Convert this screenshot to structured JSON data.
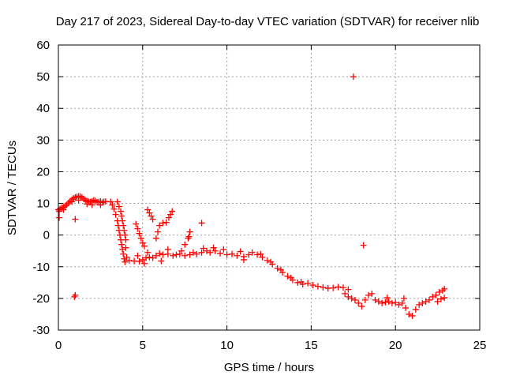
{
  "colors": {
    "series": "#ff0000",
    "grid": "#a0a0a0",
    "axis": "#000000",
    "background": "#ffffff"
  },
  "chart_data": {
    "type": "scatter",
    "title": "Day 217 of 2023, Sidereal Day-to-day VTEC variation (SDTVAR) for receiver nlib",
    "xlabel": "GPS time / hours",
    "ylabel": "SDTVAR / TECUs",
    "xlim": [
      0,
      25
    ],
    "ylim": [
      -30,
      60
    ],
    "xticks": [
      0,
      5,
      10,
      15,
      20,
      25
    ],
    "yticks": [
      -30,
      -20,
      -10,
      0,
      10,
      20,
      30,
      40,
      50,
      60
    ],
    "grid": true,
    "marker": "plus",
    "series": [
      {
        "name": "SDTVAR",
        "points": [
          [
            0.0,
            8.0
          ],
          [
            0.1,
            8.3
          ],
          [
            0.2,
            8.6
          ],
          [
            0.3,
            8.8
          ],
          [
            0.4,
            9.2
          ],
          [
            0.5,
            9.6
          ],
          [
            0.6,
            10.1
          ],
          [
            0.7,
            10.7
          ],
          [
            0.8,
            11.2
          ],
          [
            0.9,
            11.6
          ],
          [
            1.0,
            11.9
          ],
          [
            1.1,
            12.1
          ],
          [
            1.2,
            12.3
          ],
          [
            1.3,
            12.2
          ],
          [
            1.4,
            11.9
          ],
          [
            1.5,
            11.4
          ],
          [
            1.6,
            11.0
          ],
          [
            1.7,
            10.7
          ],
          [
            1.8,
            10.5
          ],
          [
            1.9,
            10.4
          ],
          [
            2.0,
            10.6
          ],
          [
            2.1,
            11.0
          ],
          [
            2.2,
            10.8
          ],
          [
            2.3,
            10.4
          ],
          [
            2.4,
            10.5
          ],
          [
            2.5,
            10.6
          ],
          [
            2.6,
            10.3
          ],
          [
            2.7,
            10.5
          ],
          [
            2.8,
            10.6
          ],
          [
            0.05,
            7.5
          ],
          [
            0.3,
            8.0
          ],
          [
            0.8,
            10.5
          ],
          [
            1.2,
            11.0
          ],
          [
            1.7,
            9.8
          ],
          [
            2.0,
            9.5
          ],
          [
            2.5,
            9.5
          ],
          [
            0.05,
            5.5
          ],
          [
            1.0,
            5.0
          ],
          [
            3.1,
            10.5
          ],
          [
            3.2,
            9.5
          ],
          [
            3.3,
            8.2
          ],
          [
            3.4,
            6.5
          ],
          [
            3.5,
            4.5
          ],
          [
            3.55,
            3.0
          ],
          [
            3.6,
            1.5
          ],
          [
            3.65,
            0.0
          ],
          [
            3.7,
            -1.5
          ],
          [
            3.75,
            -3.0
          ],
          [
            3.8,
            -4.5
          ],
          [
            3.85,
            -6.0
          ],
          [
            3.9,
            -7.5
          ],
          [
            3.95,
            -8.5
          ],
          [
            3.5,
            10.5
          ],
          [
            3.6,
            9.0
          ],
          [
            3.7,
            7.5
          ],
          [
            3.75,
            6.0
          ],
          [
            3.8,
            4.5
          ],
          [
            3.85,
            3.0
          ],
          [
            3.9,
            1.5
          ],
          [
            3.95,
            0.0
          ],
          [
            4.0,
            -1.5
          ],
          [
            4.0,
            -4.0
          ],
          [
            4.05,
            -7.0
          ],
          [
            4.2,
            -8.0
          ],
          [
            4.5,
            -8.2
          ],
          [
            4.8,
            -8.3
          ],
          [
            5.0,
            -7.8
          ],
          [
            5.2,
            -7.2
          ],
          [
            5.4,
            -7.0
          ],
          [
            5.6,
            -7.2
          ],
          [
            5.8,
            -6.5
          ],
          [
            6.0,
            -5.8
          ],
          [
            6.2,
            -6.2
          ],
          [
            6.5,
            -6.0
          ],
          [
            6.8,
            -6.5
          ],
          [
            7.0,
            -6.2
          ],
          [
            7.2,
            -6.0
          ],
          [
            7.5,
            -6.5
          ],
          [
            7.8,
            -6.2
          ],
          [
            8.0,
            -5.5
          ],
          [
            8.2,
            -6.0
          ],
          [
            8.5,
            -5.5
          ],
          [
            8.8,
            -5.0
          ],
          [
            9.0,
            -5.5
          ],
          [
            9.3,
            -5.0
          ],
          [
            9.6,
            -5.8
          ],
          [
            10.0,
            -6.2
          ],
          [
            10.3,
            -6.0
          ],
          [
            10.6,
            -6.5
          ],
          [
            11.0,
            -6.8
          ],
          [
            11.3,
            -6.2
          ],
          [
            4.7,
            -6.5
          ],
          [
            5.3,
            -5.5
          ],
          [
            6.5,
            -4.5
          ],
          [
            7.3,
            -5.0
          ],
          [
            8.6,
            -4.2
          ],
          [
            9.2,
            -4.0
          ],
          [
            9.8,
            -4.5
          ],
          [
            10.8,
            -5.2
          ],
          [
            11.0,
            -7.8
          ],
          [
            5.1,
            -9.0
          ],
          [
            6.1,
            -8.2
          ],
          [
            4.6,
            3.5
          ],
          [
            4.7,
            2.0
          ],
          [
            4.8,
            0.5
          ],
          [
            4.9,
            -1.0
          ],
          [
            5.0,
            -2.5
          ],
          [
            5.1,
            -3.5
          ],
          [
            5.3,
            8.0
          ],
          [
            5.4,
            7.0
          ],
          [
            5.5,
            6.0
          ],
          [
            5.6,
            5.0
          ],
          [
            5.8,
            -1.0
          ],
          [
            5.9,
            1.0
          ],
          [
            6.0,
            3.0
          ],
          [
            6.2,
            3.8
          ],
          [
            6.4,
            4.0
          ],
          [
            6.55,
            5.5
          ],
          [
            6.65,
            6.5
          ],
          [
            6.75,
            7.5
          ],
          [
            7.5,
            -3.0
          ],
          [
            7.7,
            -1.0
          ],
          [
            7.8,
            1.0
          ],
          [
            7.75,
            -0.5
          ],
          [
            8.5,
            3.8
          ],
          [
            11.5,
            -5.5
          ],
          [
            11.8,
            -6.2
          ],
          [
            12.1,
            -7.0
          ],
          [
            12.4,
            -8.0
          ],
          [
            12.7,
            -9.2
          ],
          [
            13.0,
            -10.5
          ],
          [
            13.3,
            -11.8
          ],
          [
            13.6,
            -13.0
          ],
          [
            13.9,
            -14.2
          ],
          [
            14.2,
            -15.0
          ],
          [
            14.5,
            -15.5
          ],
          [
            14.8,
            -15.2
          ],
          [
            15.1,
            -15.8
          ],
          [
            15.4,
            -16.2
          ],
          [
            15.7,
            -16.5
          ],
          [
            16.0,
            -16.8
          ],
          [
            16.3,
            -16.7
          ],
          [
            16.6,
            -16.4
          ],
          [
            16.9,
            -16.6
          ],
          [
            17.2,
            -17.2
          ],
          [
            12.0,
            -6.0
          ],
          [
            12.6,
            -8.5
          ],
          [
            13.2,
            -11.0
          ],
          [
            13.8,
            -13.5
          ],
          [
            14.4,
            -14.8
          ],
          [
            17.0,
            -18.5
          ],
          [
            17.2,
            -19.5
          ],
          [
            17.4,
            -20.0
          ],
          [
            17.6,
            -20.5
          ],
          [
            17.8,
            -21.5
          ],
          [
            18.0,
            -22.5
          ],
          [
            18.2,
            -20.5
          ],
          [
            18.4,
            -19.0
          ],
          [
            18.6,
            -18.5
          ],
          [
            18.8,
            -20.5
          ],
          [
            19.0,
            -21.0
          ],
          [
            19.2,
            -21.5
          ],
          [
            19.4,
            -21.2
          ],
          [
            19.6,
            -21.0
          ],
          [
            19.8,
            -21.5
          ],
          [
            20.0,
            -21.3
          ],
          [
            20.2,
            -22.0
          ],
          [
            20.4,
            -21.5
          ],
          [
            20.6,
            -23.0
          ],
          [
            20.8,
            -25.0
          ],
          [
            21.0,
            -25.5
          ],
          [
            21.2,
            -23.5
          ],
          [
            21.4,
            -22.0
          ],
          [
            21.6,
            -21.5
          ],
          [
            21.8,
            -21.0
          ],
          [
            22.0,
            -20.5
          ],
          [
            22.2,
            -19.5
          ],
          [
            22.4,
            -19.0
          ],
          [
            22.6,
            -18.0
          ],
          [
            22.8,
            -17.5
          ],
          [
            22.9,
            -17.0
          ],
          [
            22.5,
            -21.0
          ],
          [
            22.7,
            -20.2
          ],
          [
            22.9,
            -19.8
          ],
          [
            19.5,
            -19.8
          ],
          [
            20.5,
            -20.0
          ],
          [
            17.5,
            50.0
          ],
          [
            18.1,
            -3.2
          ],
          [
            1.0,
            -19.0
          ],
          [
            0.95,
            -19.5
          ]
        ]
      }
    ]
  }
}
